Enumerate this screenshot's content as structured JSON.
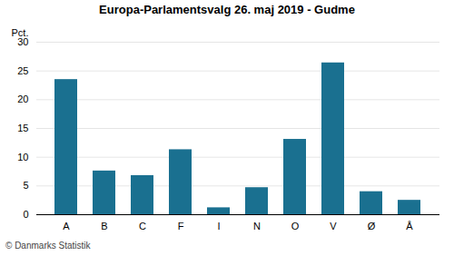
{
  "chart_data": {
    "type": "bar",
    "title": "Europa-Parlamentsvalg 26. maj 2019 - Gudme",
    "categories": [
      "A",
      "B",
      "C",
      "F",
      "I",
      "N",
      "O",
      "V",
      "Ø",
      "Å"
    ],
    "values": [
      23.5,
      7.6,
      6.8,
      11.3,
      1.2,
      4.7,
      13.1,
      26.4,
      4.0,
      2.5
    ],
    "color": "#1a7090",
    "ylabel": "Pct.",
    "caption": "© Danmarks Statistik",
    "ylim": [
      0,
      30
    ],
    "yticks": [
      0,
      5,
      10,
      15,
      20,
      25,
      30
    ],
    "grid": true
  }
}
